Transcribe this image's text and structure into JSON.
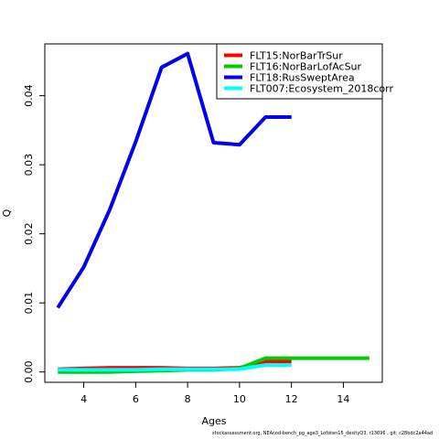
{
  "footnote": "stockassessment.org, NEAcod-bench_pg_age3_Lofoten15_desityQ3, r13696 , git: c28bdc2a44ad",
  "chart_data": {
    "type": "line",
    "title": "",
    "xlabel": "Ages",
    "ylabel": "Q",
    "xlim": [
      2.5,
      15.5
    ],
    "ylim": [
      -0.0015,
      0.0475
    ],
    "xticks": [
      4,
      6,
      8,
      10,
      12,
      14
    ],
    "yticks": [
      0.0,
      0.01,
      0.02,
      0.03,
      0.04
    ],
    "ytick_labels": [
      "0.00",
      "0.01",
      "0.02",
      "0.03",
      "0.04"
    ],
    "grid": false,
    "legend_position": "top-right",
    "series": [
      {
        "name": "FLT15:NorBarTrSur",
        "color": "#ff0000",
        "x": [
          3,
          4,
          5,
          6,
          7,
          8,
          9,
          10,
          11,
          12
        ],
        "y": [
          0.0004,
          0.0005,
          0.0006,
          0.0006,
          0.0006,
          0.0005,
          0.0005,
          0.0006,
          0.0015,
          0.0015
        ]
      },
      {
        "name": "FLT16:NorBarLofAcSur",
        "color": "#00cd00",
        "x": [
          3,
          4,
          5,
          6,
          7,
          8,
          9,
          10,
          11,
          12,
          13,
          14,
          15
        ],
        "y": [
          0.0,
          0.0,
          0.0,
          0.0001,
          0.0002,
          0.0003,
          0.0003,
          0.0005,
          0.002,
          0.002,
          0.002,
          0.002,
          0.002
        ]
      },
      {
        "name": "FLT18:RusSweptArea",
        "color": "#0000ee",
        "x": [
          3,
          4,
          5,
          6,
          7,
          8,
          9,
          10,
          11,
          12
        ],
        "y": [
          0.0093,
          0.0152,
          0.0235,
          0.0333,
          0.0441,
          0.0461,
          0.0332,
          0.0329,
          0.0369,
          0.0369
        ]
      },
      {
        "name": "FLT007:Ecosystem_2018corr",
        "color": "#00ffff",
        "x": [
          3,
          4,
          5,
          6,
          7,
          8,
          9,
          10,
          11,
          12
        ],
        "y": [
          0.0003,
          0.0003,
          0.0003,
          0.0003,
          0.0004,
          0.0004,
          0.0004,
          0.0004,
          0.001,
          0.001
        ]
      }
    ]
  }
}
